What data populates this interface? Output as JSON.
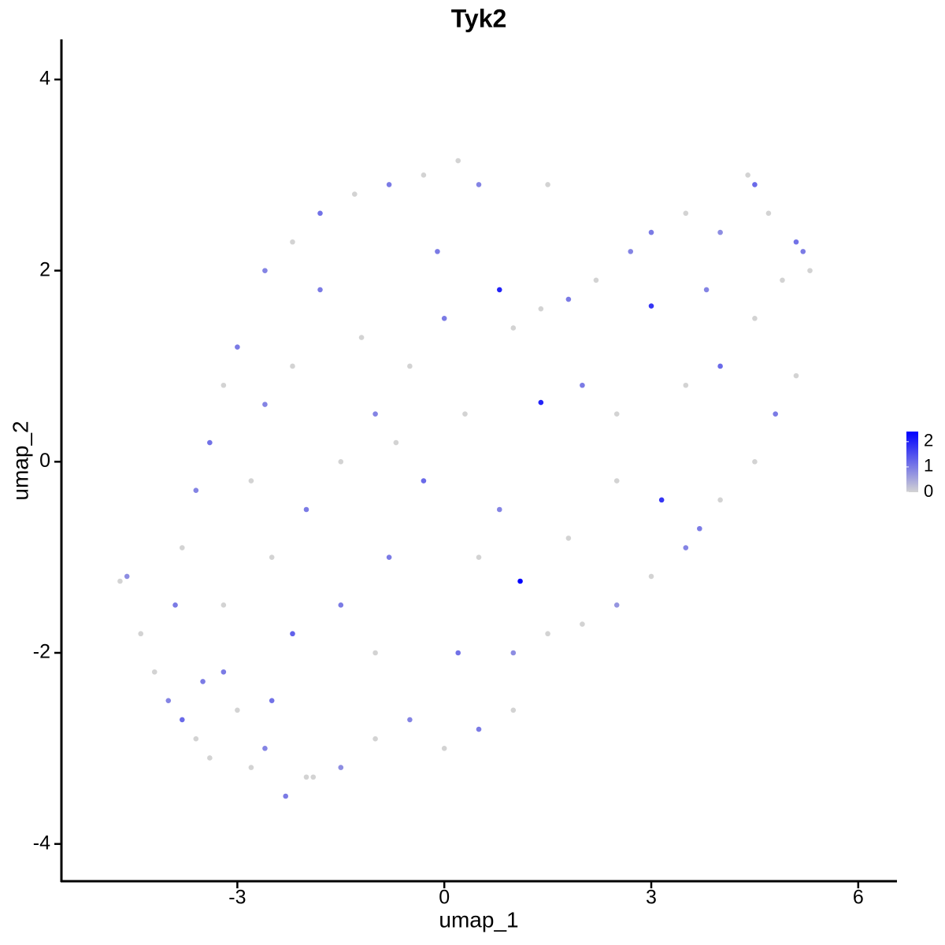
{
  "chart_data": {
    "type": "scatter",
    "title": "Tyk2",
    "x_label": "umap_1",
    "y_label": "umap_2",
    "xlim": [
      -5.55,
      6.55
    ],
    "ylim": [
      -4.39,
      4.42
    ],
    "xticks": [
      -3,
      0,
      3,
      6
    ],
    "yticks": [
      -4,
      -2,
      0,
      2,
      4
    ],
    "colors": [
      "#d3d3d3",
      "#0000ff"
    ],
    "clim": [
      0,
      2.4
    ],
    "cticks": [
      0,
      1,
      2
    ],
    "legend_position": "right",
    "x": [
      -4.7,
      -4.6,
      -4.4,
      -4.2,
      -4.0,
      -3.8,
      -3.6,
      -3.4,
      -3.2,
      -3.0,
      -2.8,
      -2.6,
      -2.3,
      -2.0,
      -1.5,
      -1.0,
      -0.5,
      0,
      0.5,
      1.0,
      1.0,
      1.5,
      2.0,
      2.5,
      3.0,
      3.5,
      4.0,
      4.5,
      4.8,
      5.1,
      5.3,
      5.1,
      4.7,
      4.4,
      4.5,
      4.0,
      3.5,
      3.0,
      2.7,
      2.2,
      1.8,
      1.4,
      1.0,
      0.8,
      0.5,
      0.2,
      -0.3,
      -0.8,
      -1.3,
      -1.8,
      -2.2,
      -2.6,
      -3.0,
      -3.2,
      -3.4,
      -3.6,
      -3.8,
      -3.9,
      -2.5,
      -2.0,
      -1.5,
      -1.0,
      -0.5,
      0,
      0.3,
      -0.3,
      0.5,
      1.1,
      1.4,
      3.15,
      3.0,
      2.0,
      2.5,
      3.5,
      4.0,
      4.5,
      3.8,
      -1.5,
      -1.0,
      -2.5,
      -3.2,
      -2.2,
      -1.8,
      -1.2,
      -0.7,
      0.8,
      1.8,
      -0.8,
      0.2,
      -2.8,
      -2.2,
      -1.9,
      4.9,
      5.2,
      2.5,
      3.7,
      1.5,
      -0.1,
      -2.6,
      -3.5
    ],
    "y": [
      -1.25,
      -1.2,
      -1.8,
      -2.2,
      -2.5,
      -2.7,
      -2.9,
      -3.1,
      -2.2,
      -2.6,
      -3.2,
      -3.0,
      -3.5,
      -3.3,
      -3.2,
      -2.9,
      -2.7,
      -3.0,
      -2.8,
      -2.6,
      -2.0,
      -1.8,
      -1.7,
      -1.5,
      -1.2,
      -0.9,
      -0.4,
      0.0,
      0.5,
      0.9,
      2.0,
      2.3,
      2.6,
      3.0,
      2.9,
      2.4,
      2.6,
      2.4,
      2.2,
      1.9,
      1.7,
      1.6,
      1.4,
      1.8,
      2.9,
      3.15,
      3.0,
      2.9,
      2.8,
      2.6,
      2.3,
      2.0,
      1.2,
      0.8,
      0.2,
      -0.3,
      -0.9,
      -1.5,
      -1.0,
      -0.5,
      0.0,
      0.5,
      1.0,
      1.5,
      0.5,
      -0.2,
      -1.0,
      -1.25,
      0.62,
      -0.4,
      1.63,
      0.8,
      0.5,
      0.8,
      1.0,
      1.5,
      1.8,
      -1.5,
      -2.0,
      -2.5,
      -1.5,
      1.0,
      1.8,
      1.3,
      0.2,
      -0.5,
      -0.8,
      -1.0,
      -2.0,
      -0.2,
      -1.8,
      -3.3,
      1.9,
      2.2,
      -0.2,
      -0.7,
      2.9,
      2.2,
      0.6,
      -2.3
    ],
    "values": [
      0,
      0.8,
      0,
      0,
      0.9,
      1.2,
      0,
      0,
      1.0,
      0,
      0,
      0.9,
      1.0,
      0,
      0.8,
      0,
      0.9,
      0,
      1.0,
      0,
      0.8,
      0,
      0,
      0.7,
      0,
      0.9,
      0,
      0,
      1.0,
      0,
      0,
      1.1,
      0,
      0,
      1.2,
      0.8,
      0,
      1.0,
      0.9,
      0,
      1.0,
      0,
      0,
      2.0,
      0.9,
      0,
      0,
      1.0,
      0,
      1.1,
      0,
      0.9,
      1.0,
      0,
      1.1,
      0.9,
      0,
      1.0,
      0,
      1.0,
      0,
      0.9,
      0,
      1.0,
      0,
      1.2,
      0,
      2.4,
      2.0,
      1.8,
      1.8,
      1.0,
      0,
      0,
      1.2,
      0,
      0.9,
      1.0,
      0,
      1.1,
      0,
      0,
      1.0,
      0,
      0,
      0.9,
      0,
      1.0,
      1.1,
      0,
      1.3,
      0,
      0,
      1.0,
      0,
      1.0,
      0,
      1.0,
      0.9,
      1.0
    ]
  }
}
